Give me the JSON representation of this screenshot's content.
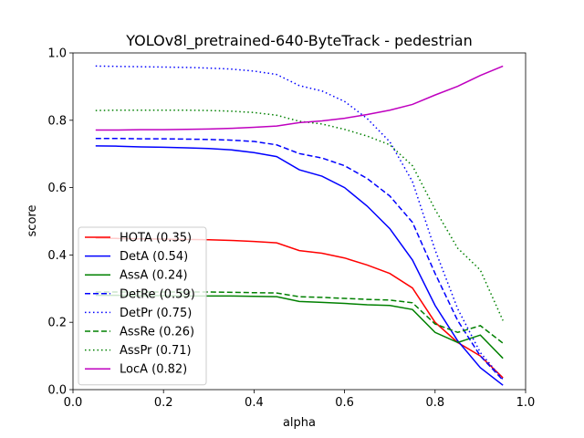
{
  "chart_data": {
    "type": "line",
    "title": "YOLOv8l_pretrained-640-ByteTrack - pedestrian",
    "xlabel": "alpha",
    "ylabel": "score",
    "xlim": [
      0.0,
      1.0
    ],
    "ylim": [
      0.0,
      1.0
    ],
    "xticks": [
      "0.0",
      "0.2",
      "0.4",
      "0.6",
      "0.8",
      "1.0"
    ],
    "yticks": [
      "0.0",
      "0.2",
      "0.4",
      "0.6",
      "0.8",
      "1.0"
    ],
    "grid": false,
    "legend_position": "lower-left",
    "x": [
      0.05,
      0.1,
      0.15,
      0.2,
      0.25,
      0.3,
      0.35,
      0.4,
      0.45,
      0.5,
      0.55,
      0.6,
      0.65,
      0.7,
      0.75,
      0.8,
      0.85,
      0.9,
      0.95
    ],
    "series": [
      {
        "name": "HOTA (0.35)",
        "color": "#ff0000",
        "dash": "solid",
        "values": [
          0.45,
          0.449,
          0.448,
          0.447,
          0.446,
          0.445,
          0.443,
          0.44,
          0.436,
          0.413,
          0.405,
          0.391,
          0.37,
          0.345,
          0.302,
          0.2,
          0.14,
          0.1,
          0.035
        ]
      },
      {
        "name": "DetA (0.54)",
        "color": "#0000ff",
        "dash": "solid",
        "values": [
          0.724,
          0.723,
          0.721,
          0.72,
          0.718,
          0.716,
          0.712,
          0.704,
          0.692,
          0.653,
          0.634,
          0.6,
          0.545,
          0.478,
          0.385,
          0.25,
          0.145,
          0.065,
          0.013
        ]
      },
      {
        "name": "AssA (0.24)",
        "color": "#008000",
        "dash": "solid",
        "values": [
          0.28,
          0.28,
          0.279,
          0.279,
          0.278,
          0.278,
          0.278,
          0.277,
          0.276,
          0.262,
          0.259,
          0.256,
          0.252,
          0.25,
          0.238,
          0.17,
          0.14,
          0.162,
          0.093
        ]
      },
      {
        "name": "DetRe (0.59)",
        "color": "#0000ff",
        "dash": "dashed",
        "values": [
          0.746,
          0.746,
          0.745,
          0.745,
          0.744,
          0.743,
          0.741,
          0.737,
          0.727,
          0.701,
          0.688,
          0.665,
          0.627,
          0.575,
          0.497,
          0.345,
          0.205,
          0.1,
          0.028
        ]
      },
      {
        "name": "DetPr (0.75)",
        "color": "#0000ff",
        "dash": "dotted",
        "values": [
          0.961,
          0.96,
          0.959,
          0.958,
          0.957,
          0.955,
          0.952,
          0.946,
          0.936,
          0.903,
          0.887,
          0.856,
          0.805,
          0.736,
          0.618,
          0.415,
          0.24,
          0.11,
          0.03
        ]
      },
      {
        "name": "AssRe (0.26)",
        "color": "#008000",
        "dash": "dashed",
        "values": [
          0.29,
          0.29,
          0.29,
          0.29,
          0.29,
          0.29,
          0.289,
          0.288,
          0.287,
          0.276,
          0.274,
          0.271,
          0.268,
          0.266,
          0.258,
          0.195,
          0.17,
          0.19,
          0.138
        ]
      },
      {
        "name": "AssPr (0.71)",
        "color": "#008000",
        "dash": "dotted",
        "values": [
          0.829,
          0.83,
          0.83,
          0.83,
          0.83,
          0.829,
          0.827,
          0.823,
          0.815,
          0.797,
          0.789,
          0.773,
          0.753,
          0.727,
          0.665,
          0.535,
          0.42,
          0.355,
          0.205
        ]
      },
      {
        "name": "LocA (0.82)",
        "color": "#bf00bf",
        "dash": "solid",
        "values": [
          0.771,
          0.771,
          0.772,
          0.772,
          0.773,
          0.774,
          0.776,
          0.779,
          0.783,
          0.793,
          0.798,
          0.806,
          0.817,
          0.83,
          0.847,
          0.875,
          0.901,
          0.933,
          0.961
        ]
      }
    ]
  }
}
